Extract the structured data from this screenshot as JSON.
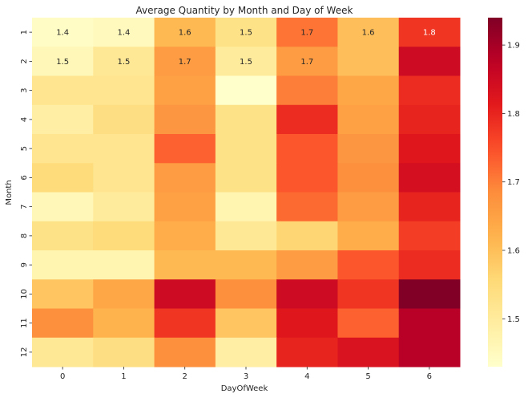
{
  "chart_data": {
    "type": "heatmap",
    "title": "Average Quantity by Month and Day of Week",
    "xlabel": "DayOfWeek",
    "ylabel": "Month",
    "x_categories": [
      "0",
      "1",
      "2",
      "3",
      "4",
      "5",
      "6"
    ],
    "y_categories": [
      "1",
      "2",
      "3",
      "4",
      "5",
      "6",
      "7",
      "8",
      "9",
      "10",
      "11",
      "12"
    ],
    "values": [
      [
        1.44,
        1.45,
        1.61,
        1.53,
        1.71,
        1.6,
        1.78
      ],
      [
        1.46,
        1.51,
        1.66,
        1.5,
        1.66,
        1.6,
        1.85
      ],
      [
        1.52,
        1.52,
        1.65,
        1.43,
        1.7,
        1.64,
        1.79
      ],
      [
        1.49,
        1.54,
        1.67,
        1.53,
        1.79,
        1.65,
        1.8
      ],
      [
        1.52,
        1.52,
        1.73,
        1.53,
        1.74,
        1.67,
        1.82
      ],
      [
        1.55,
        1.52,
        1.66,
        1.53,
        1.74,
        1.68,
        1.84
      ],
      [
        1.46,
        1.5,
        1.65,
        1.47,
        1.72,
        1.66,
        1.8
      ],
      [
        1.53,
        1.55,
        1.63,
        1.51,
        1.56,
        1.63,
        1.77
      ],
      [
        1.47,
        1.47,
        1.61,
        1.61,
        1.66,
        1.74,
        1.79
      ],
      [
        1.59,
        1.64,
        1.85,
        1.68,
        1.85,
        1.78,
        1.94
      ],
      [
        1.68,
        1.62,
        1.78,
        1.59,
        1.82,
        1.73,
        1.88
      ],
      [
        1.51,
        1.54,
        1.68,
        1.49,
        1.8,
        1.83,
        1.88
      ]
    ],
    "annotations": [
      [
        "1.4",
        "1.4",
        "1.6",
        "1.5",
        "1.7",
        "1.6",
        "1.8"
      ],
      [
        "1.5",
        "1.5",
        "1.7",
        "1.5",
        "1.7",
        "",
        ""
      ]
    ],
    "colormap": "YlOrRd",
    "vmin": 1.43,
    "vmax": 1.94,
    "colorbar_ticks": [
      "1.5",
      "1.6",
      "1.7",
      "1.8",
      "1.9"
    ],
    "colorbar_tick_values": [
      1.5,
      1.6,
      1.7,
      1.8,
      1.9
    ]
  }
}
